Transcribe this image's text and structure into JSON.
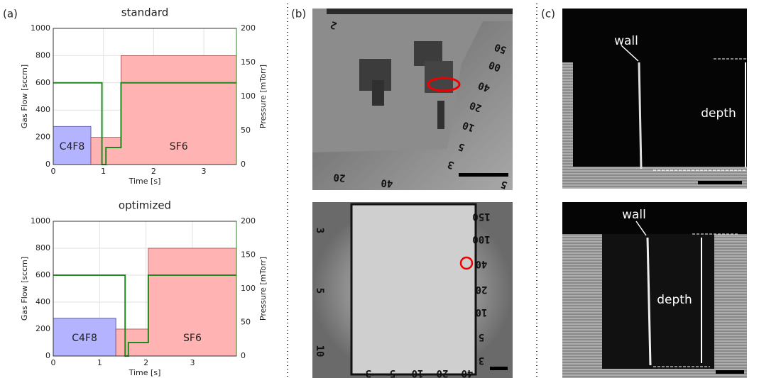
{
  "panel_labels": [
    "(a)",
    "(b)",
    "(c)"
  ],
  "chart_data": [
    {
      "type": "step-area",
      "title": "standard",
      "xlabel": "Time [s]",
      "ylabel": "Gas Flow [sccm]",
      "y2label": "Pressure [mTorr]",
      "xlim": [
        0,
        3.65
      ],
      "xticks": [
        0,
        1,
        2,
        3
      ],
      "ylim": [
        0,
        1000
      ],
      "yticks": [
        0,
        200,
        400,
        600,
        800,
        1000
      ],
      "y2lim": [
        0,
        200
      ],
      "y2ticks": [
        0,
        50,
        100,
        150,
        200
      ],
      "grid": true,
      "series": [
        {
          "name": "C4F8",
          "color": "#b3b3ff",
          "x": [
            0,
            0.75
          ],
          "values": [
            280,
            280
          ]
        },
        {
          "name": "SF6",
          "color": "#ffb3b3",
          "x": [
            0.75,
            1.35,
            1.35,
            3.65
          ],
          "values": [
            200,
            200,
            800,
            800
          ]
        },
        {
          "color": "#1f8a1f",
          "axis": "y2",
          "x": [
            0,
            0.97,
            0.97,
            1.05,
            1.05,
            1.35,
            1.35,
            3.65
          ],
          "values": [
            120,
            120,
            0,
            0,
            25,
            25,
            120,
            120
          ]
        }
      ]
    },
    {
      "type": "step-area",
      "title": "optimized",
      "xlabel": "Time [s]",
      "ylabel": "Gas Flow [sccm]",
      "y2label": "Pressure [mTorr]",
      "xlim": [
        0,
        3.95
      ],
      "xticks": [
        0,
        1,
        2,
        3
      ],
      "ylim": [
        0,
        1000
      ],
      "yticks": [
        0,
        200,
        400,
        600,
        800,
        1000
      ],
      "y2lim": [
        0,
        200
      ],
      "y2ticks": [
        0,
        50,
        100,
        150,
        200
      ],
      "grid": true,
      "series": [
        {
          "name": "C4F8",
          "color": "#b3b3ff",
          "x": [
            0,
            1.35
          ],
          "values": [
            280,
            280
          ]
        },
        {
          "name": "SF6",
          "color": "#ffb3b3",
          "x": [
            1.35,
            2.05,
            2.05,
            3.95
          ],
          "values": [
            200,
            200,
            800,
            800
          ]
        },
        {
          "color": "#1f8a1f",
          "axis": "y2",
          "x": [
            0,
            1.55,
            1.55,
            1.62,
            1.62,
            2.05,
            2.05,
            3.95
          ],
          "values": [
            120,
            120,
            0,
            0,
            20,
            20,
            120,
            120
          ]
        }
      ]
    }
  ],
  "micrographs": {
    "b_top": [
      "2",
      "50",
      "00",
      "40",
      "20",
      "10",
      "5",
      "3",
      "20",
      "40",
      "5"
    ],
    "b_bottom": [
      "150",
      "100",
      "40",
      "20",
      "10",
      "5",
      "3",
      "3",
      "5",
      "10",
      "20",
      "40",
      "3",
      "5",
      "10"
    ],
    "c_top": [
      "wall",
      "depth"
    ],
    "c_bottom": [
      "wall",
      "depth"
    ]
  }
}
